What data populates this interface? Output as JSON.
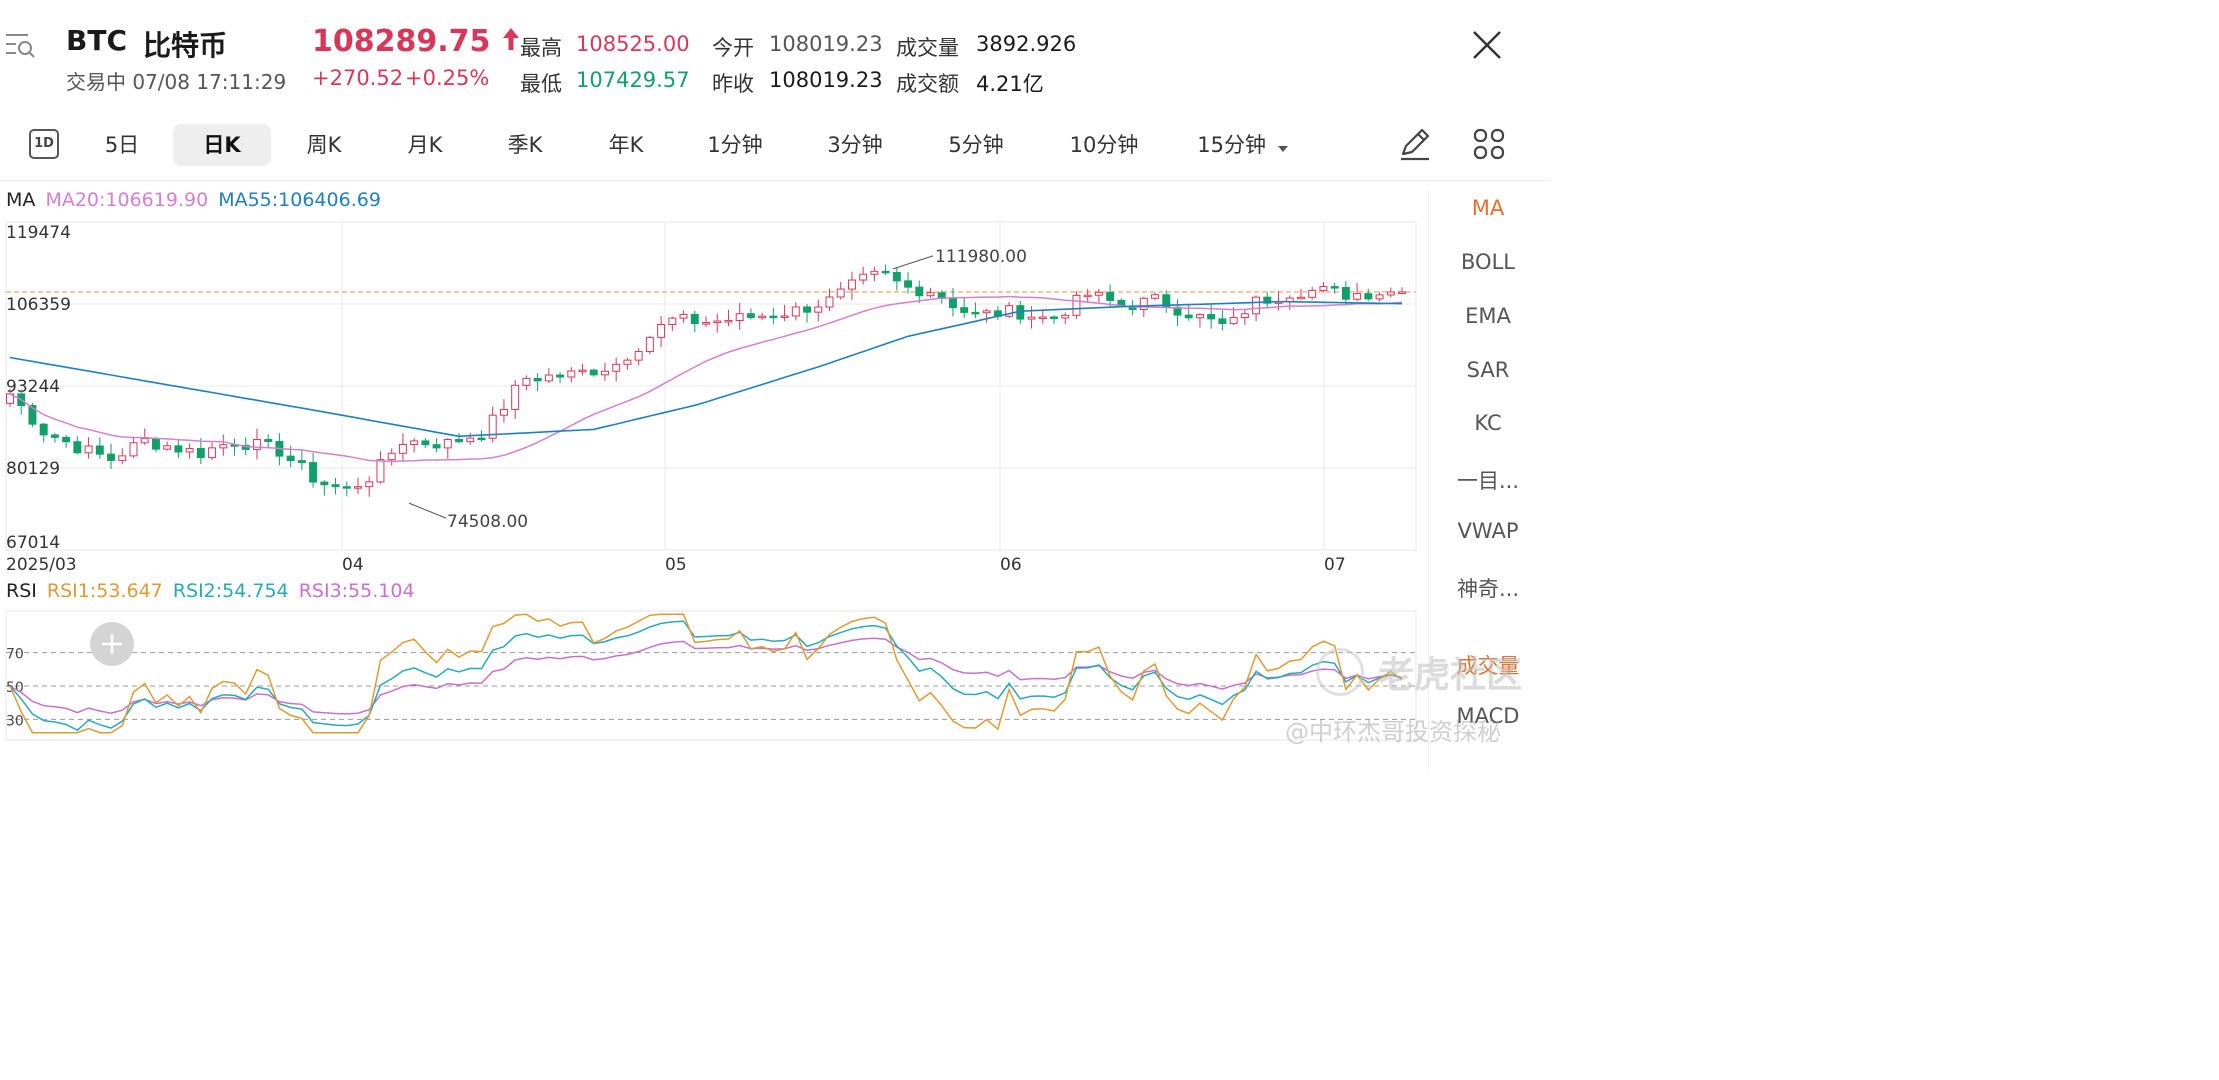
{
  "header": {
    "symbol": "BTC",
    "name": "比特币",
    "status": "交易中 07/08 17:11:29",
    "price": "108289.75",
    "change": "+270.52",
    "change_pct": "+0.25%",
    "stats": {
      "high_label": "最高",
      "high": "108525.00",
      "low_label": "最低",
      "low": "107429.57",
      "open_label": "今开",
      "open": "108019.23",
      "prev_close_label": "昨收",
      "prev_close": "108019.23",
      "volume_label": "成交量",
      "volume": "3892.926",
      "turnover_label": "成交额",
      "turnover": "4.21亿"
    }
  },
  "tabs": {
    "icon_label": "1D",
    "items": [
      "5日",
      "日K",
      "周K",
      "月K",
      "季K",
      "年K",
      "1分钟",
      "3分钟",
      "5分钟",
      "10分钟",
      "15分钟"
    ],
    "active_index": 1
  },
  "sidebar": {
    "items": [
      "MA",
      "BOLL",
      "EMA",
      "SAR",
      "KC",
      "一目...",
      "VWAP",
      "神奇...",
      "成交量",
      "MACD"
    ],
    "active_index": 0
  },
  "legend": {
    "ma_title": "MA",
    "ma20": "MA20:106619.90",
    "ma55": "MA55:106406.69",
    "rsi_title": "RSI",
    "rsi1": "RSI1:53.647",
    "rsi2": "RSI2:54.754",
    "rsi3": "RSI3:55.104"
  },
  "watermark": {
    "brand": "老虎社区",
    "author": "@中环杰哥投资探秘"
  },
  "colors": {
    "up": "#d7385a",
    "down": "#12a06a",
    "ma20": "#d67fd0",
    "ma55": "#1e7fc6",
    "rsi1": "#e09a33",
    "rsi2": "#27a9bd",
    "rsi3": "#c96fd0",
    "accent": "#e0702c"
  },
  "chart_data": [
    {
      "type": "candlestick",
      "x_ticks": [
        "2025/03",
        "04",
        "05",
        "06",
        "07"
      ],
      "y_ticks": [
        119474,
        106359,
        93244,
        80129,
        67014
      ],
      "ylim": [
        67014,
        119474
      ],
      "current_price_line": 108289.75,
      "annotations": [
        {
          "text": "111980.00",
          "value": 111980.0
        },
        {
          "text": "74508.00",
          "value": 74508.0
        }
      ],
      "series_ma20_last": 106619.9,
      "series_ma55_last": 106406.69
    },
    {
      "type": "line",
      "y_ticks": [
        70,
        50,
        30
      ],
      "reference_lines": [
        70,
        50,
        30
      ],
      "series": [
        {
          "name": "RSI1",
          "last": 53.647
        },
        {
          "name": "RSI2",
          "last": 54.754
        },
        {
          "name": "RSI3",
          "last": 55.104
        }
      ]
    }
  ]
}
